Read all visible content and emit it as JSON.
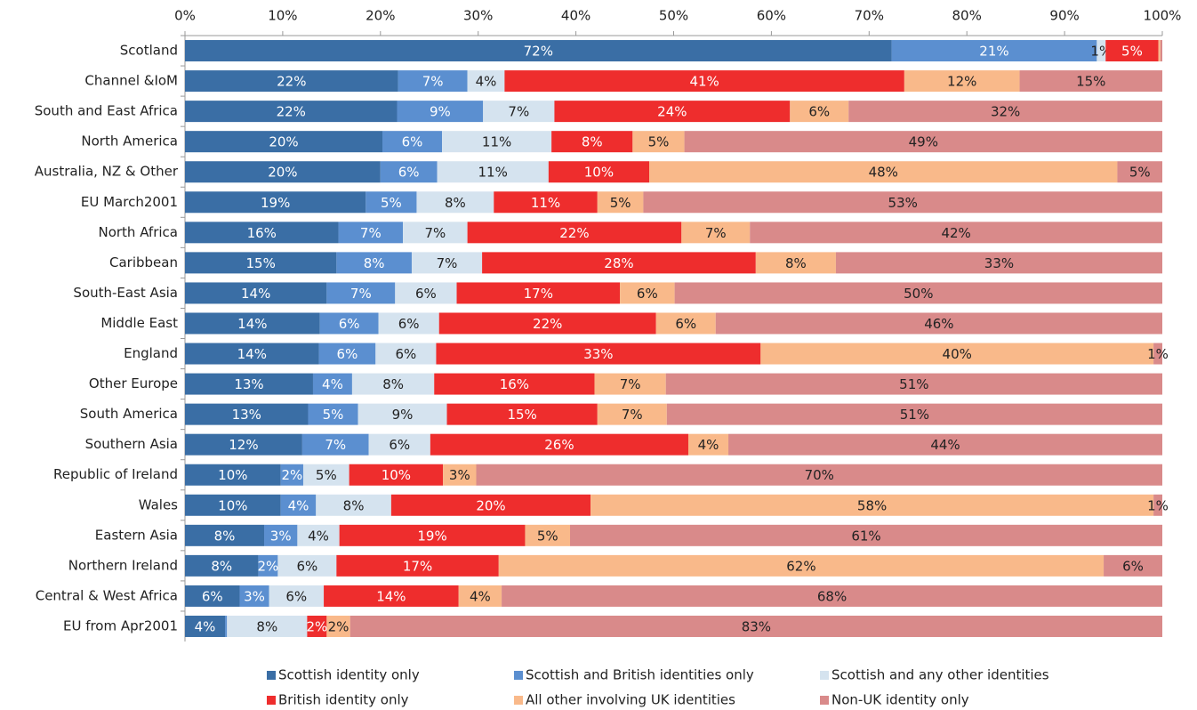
{
  "chart_data": {
    "type": "stacked-bar-horizontal",
    "categories": [
      "Scotland",
      "Channel &IoM",
      "South and East Africa",
      "North America",
      "Australia, NZ & Other",
      "EU March2001",
      "North Africa",
      "Caribbean",
      "South-East Asia",
      "Middle East",
      "England",
      "Other Europe",
      "South America",
      "Southern Asia",
      "Republic of Ireland",
      "Wales",
      "Eastern Asia",
      "Northern Ireland",
      "Central & West Africa",
      "EU from Apr2001"
    ],
    "xlim": [
      0,
      100
    ],
    "xticks": [
      {
        "value": 0,
        "label": "0%"
      },
      {
        "value": 10,
        "label": "10%"
      },
      {
        "value": 20,
        "label": "20%"
      },
      {
        "value": 30,
        "label": "30%"
      },
      {
        "value": 40,
        "label": "40%"
      },
      {
        "value": 50,
        "label": "50%"
      },
      {
        "value": 60,
        "label": "60%"
      },
      {
        "value": 70,
        "label": "70%"
      },
      {
        "value": 80,
        "label": "80%"
      },
      {
        "value": 90,
        "label": "90%"
      },
      {
        "value": 100,
        "label": "100%"
      }
    ],
    "series": [
      {
        "name": "Scottish identity only",
        "color": "#3a6ea5",
        "values": [
          72.3,
          21.8,
          21.7,
          20.2,
          20.0,
          18.5,
          15.7,
          15.5,
          14.5,
          13.8,
          13.7,
          13.1,
          12.6,
          12.0,
          9.8,
          9.8,
          8.1,
          7.5,
          5.6,
          4.1
        ],
        "value_labels": [
          "72%",
          "22%",
          "22%",
          "20%",
          "20%",
          "19%",
          "16%",
          "15%",
          "14%",
          "14%",
          "14%",
          "13%",
          "13%",
          "12%",
          "10%",
          "10%",
          "8%",
          "8%",
          "6%",
          "4%"
        ]
      },
      {
        "name": "Scottish and British identities only",
        "color": "#5b8fd0",
        "values": [
          21.0,
          7.1,
          8.8,
          6.1,
          5.8,
          5.2,
          6.6,
          7.7,
          7.0,
          6.0,
          5.8,
          4.0,
          5.1,
          6.8,
          2.3,
          3.6,
          3.4,
          2.0,
          3.0,
          0.2
        ],
        "value_labels": [
          "21%",
          "7%",
          "9%",
          "6%",
          "6%",
          "5%",
          "7%",
          "8%",
          "7%",
          "6%",
          "6%",
          "4%",
          "5%",
          "7%",
          "2%",
          "4%",
          "3%",
          "2%",
          "3%",
          null
        ]
      },
      {
        "name": "Scottish and any other identities",
        "color": "#d5e3ef",
        "values": [
          0.9,
          3.8,
          7.3,
          11.2,
          11.4,
          7.9,
          6.6,
          7.2,
          6.3,
          6.2,
          6.2,
          8.4,
          9.1,
          6.3,
          4.7,
          7.7,
          4.3,
          6.0,
          5.6,
          8.2
        ],
        "value_labels": [
          "1%",
          "4%",
          "7%",
          "11%",
          "11%",
          "8%",
          "7%",
          "7%",
          "6%",
          "6%",
          "6%",
          "8%",
          "9%",
          "6%",
          "5%",
          "8%",
          "4%",
          "6%",
          "6%",
          "8%"
        ]
      },
      {
        "name": "British identity only",
        "color": "#ee2d2d",
        "values": [
          5.4,
          40.9,
          24.1,
          8.3,
          10.3,
          10.6,
          21.9,
          28.0,
          16.7,
          22.2,
          33.2,
          16.4,
          15.4,
          26.4,
          9.6,
          20.4,
          19.0,
          16.6,
          13.8,
          2.0
        ],
        "value_labels": [
          "5%",
          "41%",
          "24%",
          "8%",
          "10%",
          "11%",
          "22%",
          "28%",
          "17%",
          "22%",
          "33%",
          "16%",
          "15%",
          "26%",
          "10%",
          "20%",
          "19%",
          "17%",
          "14%",
          "2%"
        ]
      },
      {
        "name": "All other involving UK identities",
        "color": "#f9b98a",
        "values": [
          0.2,
          11.8,
          6.0,
          5.3,
          47.9,
          4.7,
          7.0,
          8.2,
          5.6,
          6.1,
          40.2,
          7.3,
          7.1,
          4.1,
          3.4,
          57.6,
          4.6,
          61.9,
          4.4,
          2.4
        ],
        "value_labels": [
          null,
          "12%",
          "6%",
          "5%",
          "48%",
          "5%",
          "7%",
          "8%",
          "6%",
          "6%",
          "40%",
          "7%",
          "7%",
          "4%",
          "3%",
          "58%",
          "5%",
          "62%",
          "4%",
          "2%"
        ]
      },
      {
        "name": "Non-UK identity only",
        "color": "#d98a8a",
        "values": [
          0.2,
          14.6,
          32.1,
          48.9,
          4.6,
          53.1,
          42.2,
          33.4,
          49.9,
          45.7,
          0.9,
          50.8,
          50.7,
          44.4,
          70.2,
          0.9,
          60.6,
          6.0,
          67.6,
          83.1
        ],
        "value_labels": [
          null,
          "15%",
          "32%",
          "49%",
          "5%",
          "53%",
          "42%",
          "33%",
          "50%",
          "46%",
          "1%",
          "51%",
          "51%",
          "44%",
          "70%",
          "1%",
          "61%",
          "6%",
          "68%",
          "83%"
        ]
      }
    ],
    "legend": "bottom"
  }
}
